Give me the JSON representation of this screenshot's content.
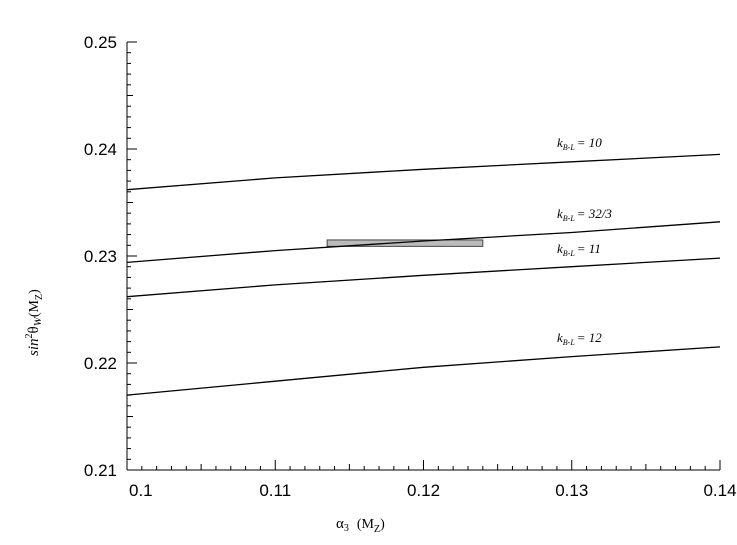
{
  "chart_data": {
    "type": "line",
    "title": "",
    "xlabel": {
      "main": "α",
      "sub": "3",
      "paren_open": "(M",
      "paren_sub": "Z",
      "paren_close": ")"
    },
    "ylabel": {
      "pre": "sin",
      "sup": "2",
      "theta": "θ",
      "sub": "W",
      "paren_open": "(M",
      "paren_sub": "Z",
      "paren_close": ")"
    },
    "xlim": [
      0.1,
      0.14
    ],
    "ylim": [
      0.21,
      0.25
    ],
    "x_ticks": [
      "0.1",
      "0.11",
      "0.12",
      "0.13",
      "0.14"
    ],
    "y_ticks": [
      "0.21",
      "0.22",
      "0.23",
      "0.24",
      "0.25"
    ],
    "grid": false,
    "series": [
      {
        "label_k": "k",
        "label_sub": "B-L",
        "label_val": "= 10",
        "x": [
          0.1,
          0.11,
          0.12,
          0.13,
          0.14
        ],
        "y": [
          0.2362,
          0.2373,
          0.2381,
          0.2388,
          0.2395
        ]
      },
      {
        "label_k": "k",
        "label_sub": "B-L",
        "label_val": "= 32/3",
        "x": [
          0.1,
          0.11,
          0.12,
          0.13,
          0.14
        ],
        "y": [
          0.2294,
          0.2305,
          0.2314,
          0.2322,
          0.2332
        ]
      },
      {
        "label_k": "k",
        "label_sub": "B-L",
        "label_val": "= 11",
        "x": [
          0.1,
          0.11,
          0.12,
          0.13,
          0.14
        ],
        "y": [
          0.2262,
          0.2273,
          0.2282,
          0.229,
          0.2298
        ]
      },
      {
        "label_k": "k",
        "label_sub": "B-L",
        "label_val": "= 12",
        "x": [
          0.1,
          0.11,
          0.12,
          0.13,
          0.14
        ],
        "y": [
          0.217,
          0.2183,
          0.2196,
          0.2206,
          0.2215
        ]
      }
    ],
    "band": {
      "x": [
        0.1135,
        0.124
      ],
      "y": [
        0.2309,
        0.2315
      ],
      "color": "#bbbbbb"
    }
  }
}
